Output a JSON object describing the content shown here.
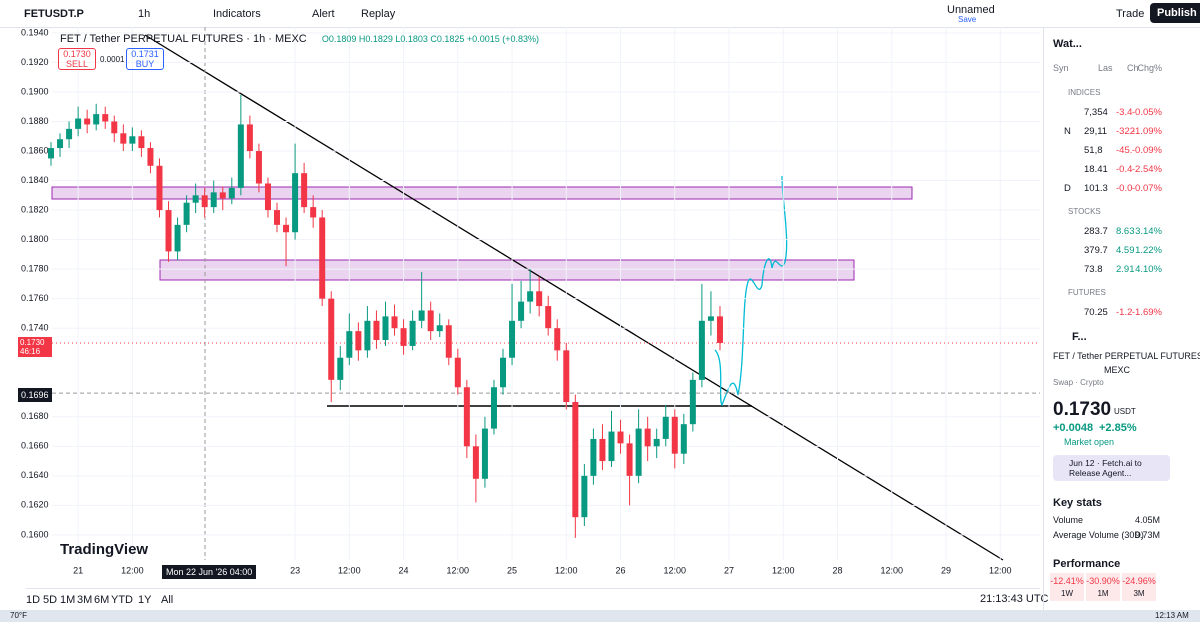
{
  "toolbar": {
    "symbol": "FETUSDT.P",
    "interval": "1h",
    "indicators": "Indicators",
    "alert": "Alert",
    "replay": "Replay",
    "layout": "Unnamed",
    "save": "Save",
    "trade": "Trade",
    "publish": "Publish"
  },
  "legend": {
    "title": "FET / Tether PERPETUAL FUTURES · 1h · MEXC",
    "ohlc": "O0.1809 H0.1829 L0.1803 C0.1825 +0.0015 (+0.83%)",
    "sell_price": "0.1730",
    "sell": "SELL",
    "spread": "0.0001",
    "buy_price": "0.1731",
    "buy": "BUY"
  },
  "chart_data": {
    "type": "candlestick",
    "up_color": "#089981",
    "down_color": "#f23645",
    "ylim": [
      0.1583,
      0.1944
    ],
    "yticks": [
      {
        "value": 0.194,
        "label": "0.1940"
      },
      {
        "value": 0.192,
        "label": "0.1920"
      },
      {
        "value": 0.19,
        "label": "0.1900"
      },
      {
        "value": 0.188,
        "label": "0.1880"
      },
      {
        "value": 0.186,
        "label": "0.1860"
      },
      {
        "value": 0.184,
        "label": "0.1840"
      },
      {
        "value": 0.182,
        "label": "0.1820"
      },
      {
        "value": 0.18,
        "label": "0.1800"
      },
      {
        "value": 0.178,
        "label": "0.1780"
      },
      {
        "value": 0.176,
        "label": "0.1760"
      },
      {
        "value": 0.174,
        "label": "0.1740"
      },
      {
        "value": 0.168,
        "label": "0.1680"
      },
      {
        "value": 0.166,
        "label": "0.1660"
      },
      {
        "value": 0.164,
        "label": "0.1640"
      },
      {
        "value": 0.162,
        "label": "0.1620"
      },
      {
        "value": 0.16,
        "label": "0.1600"
      }
    ],
    "xlim": [
      -13.3,
      212.8
    ],
    "xticks": [
      {
        "value": 0,
        "label": "21"
      },
      {
        "value": 12,
        "label": "12:00"
      },
      {
        "value": 48,
        "label": "23"
      },
      {
        "value": 60,
        "label": "12:00"
      },
      {
        "value": 72,
        "label": "24"
      },
      {
        "value": 84,
        "label": "12:00"
      },
      {
        "value": 96,
        "label": "25"
      },
      {
        "value": 108,
        "label": "12:00"
      },
      {
        "value": 120,
        "label": "26"
      },
      {
        "value": 132,
        "label": "12:00"
      },
      {
        "value": 144,
        "label": "27"
      },
      {
        "value": 156,
        "label": "12:00"
      },
      {
        "value": 168,
        "label": "28"
      },
      {
        "value": 180,
        "label": "12:00"
      },
      {
        "value": 192,
        "label": "29"
      },
      {
        "value": 204,
        "label": "12:00"
      }
    ],
    "candles": [
      [
        0.1855,
        0.1866,
        0.185,
        0.1862
      ],
      [
        0.1862,
        0.1872,
        0.1856,
        0.1868
      ],
      [
        0.1868,
        0.188,
        0.1862,
        0.1875
      ],
      [
        0.1875,
        0.189,
        0.187,
        0.1882
      ],
      [
        0.1882,
        0.1888,
        0.1872,
        0.1878
      ],
      [
        0.1878,
        0.1892,
        0.1874,
        0.1885
      ],
      [
        0.1885,
        0.189,
        0.1875,
        0.188
      ],
      [
        0.188,
        0.1884,
        0.1866,
        0.1872
      ],
      [
        0.1872,
        0.1878,
        0.186,
        0.1865
      ],
      [
        0.1865,
        0.1876,
        0.186,
        0.187
      ],
      [
        0.187,
        0.1874,
        0.1856,
        0.1862
      ],
      [
        0.1862,
        0.1866,
        0.1845,
        0.185
      ],
      [
        0.185,
        0.1855,
        0.1815,
        0.182
      ],
      [
        0.182,
        0.1826,
        0.1785,
        0.1792
      ],
      [
        0.1792,
        0.1815,
        0.1786,
        0.181
      ],
      [
        0.181,
        0.183,
        0.1805,
        0.1825
      ],
      [
        0.1825,
        0.1838,
        0.1818,
        0.183
      ],
      [
        0.183,
        0.1835,
        0.1815,
        0.1822
      ],
      [
        0.1822,
        0.184,
        0.1818,
        0.1832
      ],
      [
        0.1832,
        0.1836,
        0.182,
        0.1828
      ],
      [
        0.1828,
        0.1842,
        0.1824,
        0.1835
      ],
      [
        0.1835,
        0.1898,
        0.183,
        0.1878
      ],
      [
        0.1878,
        0.1884,
        0.1855,
        0.186
      ],
      [
        0.186,
        0.1865,
        0.1832,
        0.1838
      ],
      [
        0.1838,
        0.1842,
        0.1815,
        0.182
      ],
      [
        0.182,
        0.1825,
        0.1805,
        0.181
      ],
      [
        0.181,
        0.1815,
        0.1782,
        0.1805
      ],
      [
        0.1805,
        0.1865,
        0.18,
        0.1845
      ],
      [
        0.1845,
        0.1852,
        0.1818,
        0.1822
      ],
      [
        0.1822,
        0.183,
        0.1808,
        0.1815
      ],
      [
        0.1815,
        0.182,
        0.1755,
        0.176
      ],
      [
        0.176,
        0.1765,
        0.169,
        0.1705
      ],
      [
        0.1705,
        0.1728,
        0.1698,
        0.172
      ],
      [
        0.172,
        0.175,
        0.1715,
        0.1738
      ],
      [
        0.1738,
        0.1744,
        0.1718,
        0.1725
      ],
      [
        0.1725,
        0.1755,
        0.172,
        0.1745
      ],
      [
        0.1745,
        0.1752,
        0.1726,
        0.1732
      ],
      [
        0.1732,
        0.1758,
        0.1728,
        0.1748
      ],
      [
        0.1748,
        0.1756,
        0.1735,
        0.174
      ],
      [
        0.174,
        0.1746,
        0.1722,
        0.1728
      ],
      [
        0.1728,
        0.1752,
        0.1725,
        0.1745
      ],
      [
        0.1745,
        0.1778,
        0.174,
        0.1752
      ],
      [
        0.1752,
        0.1758,
        0.1732,
        0.1738
      ],
      [
        0.1738,
        0.175,
        0.1734,
        0.1742
      ],
      [
        0.1742,
        0.1746,
        0.1715,
        0.172
      ],
      [
        0.172,
        0.1726,
        0.1695,
        0.17
      ],
      [
        0.17,
        0.1705,
        0.1652,
        0.166
      ],
      [
        0.166,
        0.1668,
        0.1622,
        0.1638
      ],
      [
        0.1638,
        0.168,
        0.1632,
        0.1672
      ],
      [
        0.1672,
        0.1705,
        0.1668,
        0.17
      ],
      [
        0.17,
        0.1726,
        0.1695,
        0.172
      ],
      [
        0.172,
        0.177,
        0.1715,
        0.1745
      ],
      [
        0.1745,
        0.1772,
        0.174,
        0.1758
      ],
      [
        0.1758,
        0.178,
        0.175,
        0.1765
      ],
      [
        0.1765,
        0.1775,
        0.1748,
        0.1755
      ],
      [
        0.1755,
        0.1762,
        0.1735,
        0.174
      ],
      [
        0.174,
        0.1746,
        0.1718,
        0.1725
      ],
      [
        0.1725,
        0.173,
        0.1685,
        0.169
      ],
      [
        0.169,
        0.1695,
        0.1598,
        0.1612
      ],
      [
        0.1612,
        0.1648,
        0.1606,
        0.164
      ],
      [
        0.164,
        0.1672,
        0.1634,
        0.1665
      ],
      [
        0.1665,
        0.1675,
        0.1644,
        0.165
      ],
      [
        0.165,
        0.1684,
        0.1646,
        0.167
      ],
      [
        0.167,
        0.1678,
        0.1655,
        0.1662
      ],
      [
        0.1662,
        0.1668,
        0.162,
        0.164
      ],
      [
        0.164,
        0.1685,
        0.1635,
        0.1672
      ],
      [
        0.1672,
        0.168,
        0.165,
        0.166
      ],
      [
        0.166,
        0.1672,
        0.1652,
        0.1665
      ],
      [
        0.1665,
        0.1688,
        0.166,
        0.168
      ],
      [
        0.168,
        0.1685,
        0.1645,
        0.1655
      ],
      [
        0.1655,
        0.1682,
        0.1648,
        0.1675
      ],
      [
        0.1675,
        0.171,
        0.167,
        0.1705
      ],
      [
        0.1705,
        0.177,
        0.17,
        0.1745
      ],
      [
        0.1745,
        0.1765,
        0.1735,
        0.1748
      ],
      [
        0.1748,
        0.1755,
        0.1725,
        0.173
      ]
    ],
    "last_price": {
      "value": 0.173,
      "label": "0.1730"
    },
    "countdown": "46:16",
    "cursor_price": {
      "value": 0.1696,
      "label": "0.1696"
    },
    "cursor_time": "Mon 22 Jun '26  04:00",
    "logo": "TradingView"
  },
  "bottom": {
    "ranges": [
      "1D",
      "5D",
      "1M",
      "3M",
      "6M",
      "YTD",
      "1Y",
      "All"
    ],
    "clock": "21:13:43 UTC"
  },
  "watchlist": {
    "title": "Wat...",
    "columns": [
      "Syn",
      "Las",
      "Ch",
      "Chg%"
    ],
    "groups": [
      {
        "name": "INDICES",
        "rows": [
          [
            "",
            "7,354",
            "-3.4",
            "-0.05%"
          ],
          [
            "N",
            "29,11",
            "-322",
            "-1.09%"
          ],
          [
            "",
            "51,8",
            "-45.",
            "-0.09%"
          ],
          [
            "",
            "18.41",
            "-0.4",
            "-2.54%"
          ],
          [
            "D",
            "101.3",
            "-0.0",
            "-0.07%"
          ]
        ]
      },
      {
        "name": "STOCKS",
        "rows": [
          [
            "",
            "283.7",
            "8.63",
            "3.14%"
          ],
          [
            "",
            "379.7",
            "4.59",
            "1.22%"
          ],
          [
            "",
            "73.8",
            "2.91",
            "4.10%"
          ]
        ]
      },
      {
        "name": "FUTURES",
        "rows": [
          [
            "",
            "70.25",
            "-1.2",
            "-1.69%"
          ]
        ]
      }
    ]
  },
  "details": {
    "short": "F...",
    "name": "FET / Tether PERPETUAL FUTURES",
    "exchange": "MEXC",
    "kind": "Swap · Crypto",
    "price": "0.1730",
    "currency": "USDT",
    "change": "+0.0048",
    "change_pct": "+2.85%",
    "status": "Market open",
    "news": "Jun 12 · Fetch.ai to Release Agent...",
    "key_stats": "Key stats",
    "volume_label": "Volume",
    "volume": "4.05M",
    "avg_label": "Average Volume (30D)",
    "avg": "9.73M",
    "performance": "Performance",
    "perf": [
      {
        "value": "-12.41%",
        "period": "1W"
      },
      {
        "value": "-30.90%",
        "period": "1M"
      },
      {
        "value": "-24.96%",
        "period": "3M"
      }
    ]
  },
  "taskbar": {
    "weather": "70°F",
    "time": "12:13 AM"
  }
}
